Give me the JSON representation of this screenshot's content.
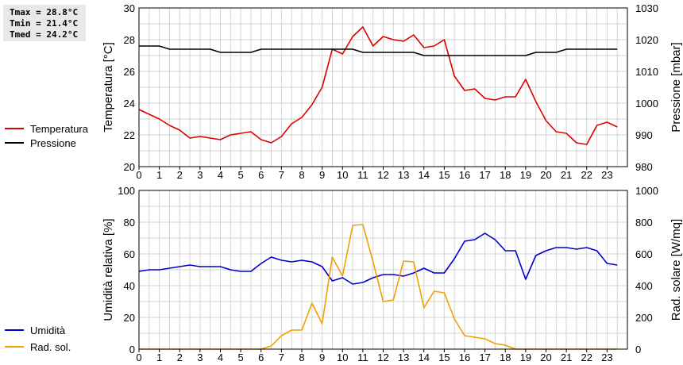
{
  "stats": {
    "tmax": "Tmax = 28.8°C",
    "tmin": "Tmin = 21.4°C",
    "tmed": "Tmed = 24.2°C"
  },
  "chart_data": [
    {
      "type": "line",
      "xlabel": "",
      "x_ticks": [
        "0",
        "1",
        "2",
        "3",
        "4",
        "5",
        "6",
        "7",
        "8",
        "9",
        "10",
        "11",
        "12",
        "13",
        "14",
        "15",
        "16",
        "17",
        "18",
        "19",
        "20",
        "21",
        "22",
        "23"
      ],
      "xlim": [
        0,
        24
      ],
      "ylabel": "Temperatura [°C]",
      "ylim": [
        20,
        30
      ],
      "y_ticks": [
        "20",
        "22",
        "24",
        "26",
        "28",
        "30"
      ],
      "y2label": "Pressione [mbar]",
      "y2lim": [
        980,
        1030
      ],
      "y2_ticks": [
        "980",
        "990",
        "1000",
        "1010",
        "1020",
        "1030"
      ],
      "grid": true,
      "legend_position": "left",
      "series": [
        {
          "name": "Temperatura",
          "axis": "left",
          "color": "#dd0000",
          "x": [
            0,
            0.5,
            1,
            1.5,
            2,
            2.5,
            3,
            3.5,
            4,
            4.5,
            5,
            5.5,
            6,
            6.5,
            7,
            7.5,
            8,
            8.5,
            9,
            9.5,
            10,
            10.5,
            11,
            11.5,
            12,
            12.5,
            13,
            13.5,
            14,
            14.5,
            15,
            15.5,
            16,
            16.5,
            17,
            17.5,
            18,
            18.5,
            19,
            19.5,
            20,
            20.5,
            21,
            21.5,
            22,
            22.5,
            23,
            23.5
          ],
          "values": [
            23.6,
            23.3,
            23.0,
            22.6,
            22.3,
            21.8,
            21.9,
            21.8,
            21.7,
            22.0,
            22.1,
            22.2,
            21.7,
            21.5,
            21.9,
            22.7,
            23.1,
            23.9,
            25.0,
            27.4,
            27.1,
            28.2,
            28.8,
            27.6,
            28.2,
            28.0,
            27.9,
            28.3,
            27.5,
            27.6,
            28.0,
            25.7,
            24.8,
            24.9,
            24.3,
            24.2,
            24.4,
            24.4,
            25.5,
            24.1,
            22.9,
            22.2,
            22.1,
            21.5,
            21.4,
            22.6,
            22.8,
            22.5
          ]
        },
        {
          "name": "Pressione",
          "axis": "right",
          "color": "#000000",
          "x": [
            0,
            1,
            1.5,
            2,
            2.5,
            3,
            3.5,
            4,
            4.5,
            5,
            5.5,
            6,
            6.5,
            7,
            7.5,
            8,
            8.5,
            9,
            9.5,
            10,
            10.5,
            11,
            11.5,
            12,
            12.5,
            13,
            13.5,
            14,
            14.5,
            15,
            15.5,
            16,
            16.5,
            17,
            17.5,
            18,
            18.5,
            19,
            19.5,
            20,
            20.5,
            21,
            21.5,
            22,
            22.5,
            23,
            23.5
          ],
          "values": [
            1018,
            1018,
            1017,
            1017,
            1017,
            1017,
            1017,
            1016,
            1016,
            1016,
            1016,
            1017,
            1017,
            1017,
            1017,
            1017,
            1017,
            1017,
            1017,
            1017,
            1017,
            1016,
            1016,
            1016,
            1016,
            1016,
            1016,
            1015,
            1015,
            1015,
            1015,
            1015,
            1015,
            1015,
            1015,
            1015,
            1015,
            1015,
            1016,
            1016,
            1016,
            1017,
            1017,
            1017,
            1017,
            1017,
            1017
          ]
        }
      ]
    },
    {
      "type": "line",
      "xlabel": "",
      "x_ticks": [
        "0",
        "1",
        "2",
        "3",
        "4",
        "5",
        "6",
        "7",
        "8",
        "9",
        "10",
        "11",
        "12",
        "13",
        "14",
        "15",
        "16",
        "17",
        "18",
        "19",
        "20",
        "21",
        "22",
        "23"
      ],
      "xlim": [
        0,
        24
      ],
      "ylabel": "Umidità relativa [%]",
      "ylim": [
        0,
        100
      ],
      "y_ticks": [
        "0",
        "20",
        "40",
        "60",
        "80",
        "100"
      ],
      "y2label": "Rad. solare [W/mq]",
      "y2lim": [
        0,
        1000
      ],
      "y2_ticks": [
        "0",
        "200",
        "400",
        "600",
        "800",
        "1000"
      ],
      "grid": true,
      "legend_position": "left",
      "series": [
        {
          "name": "Umidità",
          "axis": "left",
          "color": "#0000cc",
          "x": [
            0,
            0.5,
            1,
            1.5,
            2,
            2.5,
            3,
            3.5,
            4,
            4.5,
            5,
            5.5,
            6,
            6.5,
            7,
            7.5,
            8,
            8.5,
            9,
            9.5,
            10,
            10.5,
            11,
            11.5,
            12,
            12.5,
            13,
            13.5,
            14,
            14.5,
            15,
            15.5,
            16,
            16.5,
            17,
            17.5,
            18,
            18.5,
            19,
            19.5,
            20,
            20.5,
            21,
            21.5,
            22,
            22.5,
            23,
            23.5
          ],
          "values": [
            49,
            50,
            50,
            51,
            52,
            53,
            52,
            52,
            52,
            50,
            49,
            49,
            54,
            58,
            56,
            55,
            56,
            55,
            52,
            43,
            45,
            41,
            42,
            45,
            47,
            47,
            46,
            48,
            51,
            48,
            48,
            57,
            68,
            69,
            73,
            69,
            62,
            62,
            44,
            59,
            62,
            64,
            64,
            63,
            64,
            62,
            54,
            53
          ]
        },
        {
          "name": "Rad. sol.",
          "axis": "right",
          "color": "#f0a000",
          "x": [
            0,
            0.5,
            1,
            1.5,
            2,
            2.5,
            3,
            3.5,
            4,
            4.5,
            5,
            5.5,
            6,
            6.5,
            7,
            7.5,
            8,
            8.5,
            9,
            9.5,
            10,
            10.5,
            11,
            11.5,
            12,
            12.5,
            13,
            13.5,
            14,
            14.5,
            15,
            15.5,
            16,
            16.5,
            17,
            17.5,
            18,
            18.5,
            19,
            19.5,
            20,
            20.5,
            21,
            21.5,
            22,
            22.5,
            23,
            23.5
          ],
          "values": [
            0,
            0,
            0,
            0,
            0,
            0,
            0,
            0,
            0,
            0,
            0,
            0,
            0,
            20,
            85,
            120,
            120,
            290,
            160,
            580,
            460,
            780,
            785,
            550,
            300,
            310,
            555,
            550,
            260,
            365,
            355,
            190,
            85,
            75,
            65,
            35,
            25,
            0,
            0,
            0,
            0,
            0,
            0,
            0,
            0,
            0,
            0,
            0
          ]
        }
      ]
    }
  ]
}
